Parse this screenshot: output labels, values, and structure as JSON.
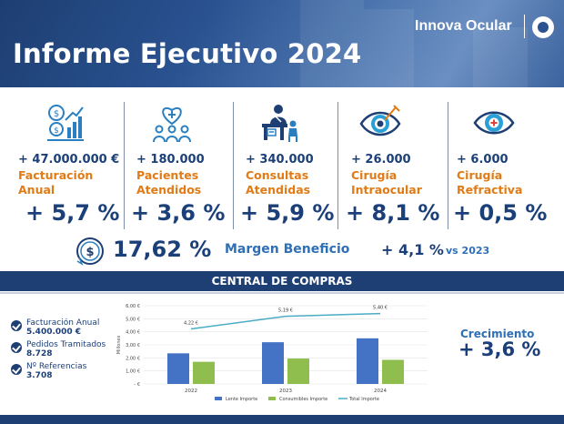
{
  "header": {
    "title": "Informe Ejecutivo 2024",
    "brand": "Innova Ocular"
  },
  "kpis": [
    {
      "icon": "revenue-chart-icon",
      "value": "+ 47.000.000 €",
      "label_line1": "Facturación",
      "label_line2": "Anual",
      "growth": "+ 5,7 %"
    },
    {
      "icon": "patients-heart-icon",
      "value": "+ 180.000",
      "label_line1": "Pacientes",
      "label_line2": "Atendidos",
      "growth": "+ 3,6 %"
    },
    {
      "icon": "doctor-consultation-icon",
      "value": "+ 340.000",
      "label_line1": "Consultas",
      "label_line2": "Atendidas",
      "growth": "+ 5,9 %"
    },
    {
      "icon": "eye-surgery-icon",
      "value": "+ 26.000",
      "label_line1": "Cirugía",
      "label_line2": "Intraocular",
      "growth": "+ 8,1 %"
    },
    {
      "icon": "eye-refractive-icon",
      "value": "+ 6.000",
      "label_line1": "Cirugía",
      "label_line2": "Refractiva",
      "growth": "+ 0,5 %"
    }
  ],
  "margin": {
    "value": "17,62 %",
    "label": "Margen Beneficio",
    "growth": "+ 4,1 %",
    "vs": "vs 2023"
  },
  "central": {
    "title": "CENTRAL DE COMPRAS",
    "items": [
      {
        "label": "Facturación Anual",
        "value": "5.400.000 €"
      },
      {
        "label": "Pedidos Tramitados",
        "value": "8.728"
      },
      {
        "label": "Nº Referencias",
        "value": "3.708"
      }
    ],
    "growth_label": "Crecimiento",
    "growth_value": "+ 3,6 %"
  },
  "chart_data": {
    "type": "bar",
    "categories": [
      "2022",
      "2023",
      "2024"
    ],
    "ylabel": "Millones",
    "ylim": [
      0,
      6
    ],
    "yticks": [
      "- €",
      "1,00 €",
      "2,00 €",
      "3,00 €",
      "4,00 €",
      "5,00 €",
      "6,00 €"
    ],
    "series": [
      {
        "name": "Lente Importe",
        "type": "bar",
        "color": "#4472c4",
        "values": [
          2.35,
          3.2,
          3.5
        ]
      },
      {
        "name": "Consumibles Importe",
        "type": "bar",
        "color": "#8fbe4f",
        "values": [
          1.7,
          1.95,
          1.85
        ]
      },
      {
        "name": "Total Importe",
        "type": "line",
        "color": "#4bacc6",
        "values": [
          4.22,
          5.19,
          5.4
        ],
        "labels": [
          "4,22 €",
          "5,19 €",
          "5,40 €"
        ]
      }
    ],
    "legend_position": "bottom"
  }
}
